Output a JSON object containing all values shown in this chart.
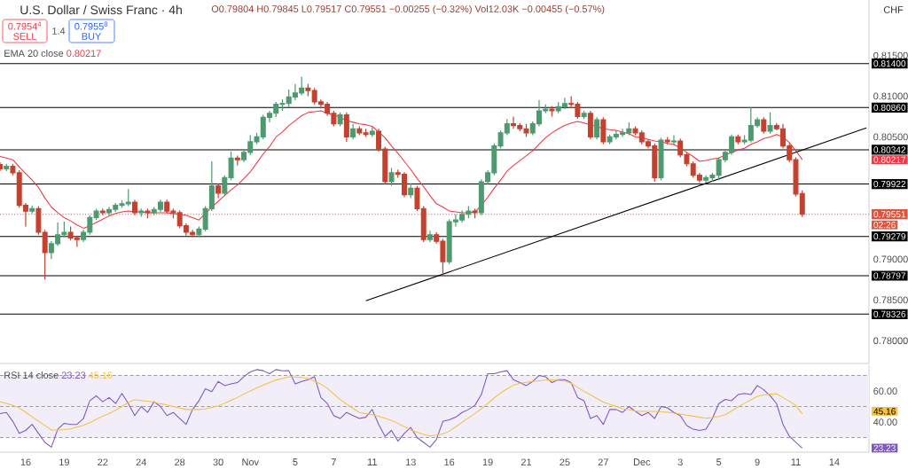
{
  "chart_data": [
    {
      "type": "candlestick",
      "title": "U.S. Dollar / Swiss Franc · 4h",
      "categories": [
        null,
        null,
        null,
        null,
        null,
        null,
        null,
        null,
        null,
        null,
        null,
        null,
        null,
        null,
        null,
        null,
        null,
        null,
        null,
        null,
        null,
        null,
        null,
        null,
        null,
        null,
        null,
        null,
        null,
        null,
        null,
        null,
        null,
        null,
        null,
        null,
        null,
        null,
        null,
        null,
        null,
        null,
        null,
        null,
        null,
        null,
        null,
        null,
        null,
        null,
        null,
        null,
        null,
        null,
        null,
        null,
        null,
        null,
        null,
        null,
        null,
        null,
        null,
        null,
        null,
        null,
        null,
        null,
        null,
        null,
        null,
        null,
        null,
        null,
        null,
        null,
        null,
        null,
        null,
        null,
        null,
        null,
        null,
        null,
        null,
        null,
        null,
        null,
        null,
        null,
        null,
        null,
        null,
        null,
        null,
        null,
        null,
        null,
        null,
        null,
        null,
        null,
        null,
        null,
        null,
        null,
        null,
        null,
        null,
        null,
        null,
        null,
        null,
        null,
        null,
        null,
        null,
        null,
        null,
        null,
        null,
        null,
        null,
        null,
        null,
        null,
        null,
        null,
        null,
        null,
        null,
        null,
        null,
        null,
        null,
        null
      ],
      "ohlc": [
        [
          0.8016,
          0.8019,
          0.8008,
          0.8011
        ],
        [
          0.8011,
          0.8017,
          0.8008,
          0.8014
        ],
        [
          0.8014,
          0.8017,
          0.8003,
          0.8006
        ],
        [
          0.8006,
          0.8009,
          0.7963,
          0.7966
        ],
        [
          0.7966,
          0.7969,
          0.794,
          0.7959
        ],
        [
          0.7959,
          0.7966,
          0.7956,
          0.7962
        ],
        [
          0.7962,
          0.7965,
          0.793,
          0.7933
        ],
        [
          0.7933,
          0.7936,
          0.7875,
          0.7908
        ],
        [
          0.7908,
          0.7922,
          0.79,
          0.7919
        ],
        [
          0.7919,
          0.7945,
          0.7916,
          0.793
        ],
        [
          0.793,
          0.7946,
          0.7927,
          0.7933
        ],
        [
          0.7933,
          0.794,
          0.7923,
          0.7926
        ],
        [
          0.7926,
          0.7929,
          0.7915,
          0.7924
        ],
        [
          0.7924,
          0.7936,
          0.7921,
          0.7933
        ],
        [
          0.7933,
          0.7954,
          0.793,
          0.7951
        ],
        [
          0.7951,
          0.7962,
          0.7948,
          0.7959
        ],
        [
          0.7959,
          0.7962,
          0.7954,
          0.7957
        ],
        [
          0.7957,
          0.7964,
          0.7954,
          0.7961
        ],
        [
          0.7961,
          0.7969,
          0.7958,
          0.7966
        ],
        [
          0.7966,
          0.7972,
          0.7963,
          0.7968
        ],
        [
          0.7968,
          0.7986,
          0.7965,
          0.797
        ],
        [
          0.797,
          0.7973,
          0.7954,
          0.7957
        ],
        [
          0.7957,
          0.7962,
          0.7952,
          0.7959
        ],
        [
          0.7959,
          0.7962,
          0.795,
          0.7957
        ],
        [
          0.7957,
          0.7964,
          0.7954,
          0.7961
        ],
        [
          0.7961,
          0.7973,
          0.7958,
          0.797
        ],
        [
          0.797,
          0.7973,
          0.7956,
          0.7959
        ],
        [
          0.7959,
          0.7962,
          0.795,
          0.7957
        ],
        [
          0.7957,
          0.796,
          0.7938,
          0.7941
        ],
        [
          0.7941,
          0.7944,
          0.7929,
          0.7933
        ],
        [
          0.7933,
          0.7936,
          0.7927,
          0.793
        ],
        [
          0.793,
          0.794,
          0.7927,
          0.7937
        ],
        [
          0.7937,
          0.7965,
          0.7934,
          0.7962
        ],
        [
          0.7962,
          0.802,
          0.7959,
          0.799
        ],
        [
          0.799,
          0.7993,
          0.7975,
          0.7981
        ],
        [
          0.7981,
          0.8003,
          0.7978,
          0.8
        ],
        [
          0.8,
          0.8032,
          0.7997,
          0.8024
        ],
        [
          0.8024,
          0.8027,
          0.8015,
          0.8022
        ],
        [
          0.8022,
          0.8034,
          0.8019,
          0.8031
        ],
        [
          0.8031,
          0.8052,
          0.8028,
          0.8044
        ],
        [
          0.8044,
          0.8055,
          0.8041,
          0.805
        ],
        [
          0.805,
          0.8077,
          0.8047,
          0.8074
        ],
        [
          0.8074,
          0.8082,
          0.8068,
          0.8079
        ],
        [
          0.8079,
          0.8093,
          0.8074,
          0.809
        ],
        [
          0.809,
          0.8096,
          0.8082,
          0.8091
        ],
        [
          0.8091,
          0.8108,
          0.8086,
          0.8099
        ],
        [
          0.8099,
          0.8115,
          0.8095,
          0.8104
        ],
        [
          0.8104,
          0.8124,
          0.8101,
          0.811
        ],
        [
          0.811,
          0.8115,
          0.81,
          0.8107
        ],
        [
          0.8107,
          0.811,
          0.809,
          0.8093
        ],
        [
          0.8093,
          0.8096,
          0.8085,
          0.809
        ],
        [
          0.809,
          0.8093,
          0.8076,
          0.8079
        ],
        [
          0.8079,
          0.8082,
          0.8063,
          0.8066
        ],
        [
          0.8066,
          0.808,
          0.8063,
          0.8077
        ],
        [
          0.8077,
          0.808,
          0.8044,
          0.805
        ],
        [
          0.805,
          0.8066,
          0.8047,
          0.806
        ],
        [
          0.806,
          0.8063,
          0.8052,
          0.8055
        ],
        [
          0.8055,
          0.806,
          0.805,
          0.8053
        ],
        [
          0.8053,
          0.8062,
          0.805,
          0.8057
        ],
        [
          0.8057,
          0.806,
          0.8032,
          0.8035
        ],
        [
          0.8035,
          0.8038,
          0.7992,
          0.7995
        ],
        [
          0.7995,
          0.8012,
          0.799,
          0.8006
        ],
        [
          0.8006,
          0.801,
          0.8,
          0.8004
        ],
        [
          0.8004,
          0.8007,
          0.7976,
          0.7979
        ],
        [
          0.7979,
          0.7993,
          0.7975,
          0.7987
        ],
        [
          0.7987,
          0.799,
          0.7959,
          0.7962
        ],
        [
          0.7962,
          0.7965,
          0.7921,
          0.7924
        ],
        [
          0.7924,
          0.7935,
          0.7921,
          0.793
        ],
        [
          0.793,
          0.7933,
          0.7919,
          0.7922
        ],
        [
          0.7922,
          0.7925,
          0.788,
          0.7897
        ],
        [
          0.7897,
          0.7949,
          0.7894,
          0.7946
        ],
        [
          0.7946,
          0.7955,
          0.794,
          0.7948
        ],
        [
          0.7948,
          0.796,
          0.7945,
          0.7955
        ],
        [
          0.7955,
          0.7965,
          0.795,
          0.7959
        ],
        [
          0.7959,
          0.7962,
          0.795,
          0.7957
        ],
        [
          0.7957,
          0.7998,
          0.7954,
          0.7995
        ],
        [
          0.7995,
          0.8009,
          0.7992,
          0.8006
        ],
        [
          0.8006,
          0.8042,
          0.8003,
          0.8039
        ],
        [
          0.8039,
          0.8058,
          0.8036,
          0.8055
        ],
        [
          0.8055,
          0.8072,
          0.8052,
          0.8066
        ],
        [
          0.8066,
          0.8075,
          0.806,
          0.8064
        ],
        [
          0.8064,
          0.8067,
          0.8057,
          0.806
        ],
        [
          0.806,
          0.8066,
          0.805,
          0.8055
        ],
        [
          0.8055,
          0.8069,
          0.8052,
          0.8066
        ],
        [
          0.8066,
          0.8095,
          0.8063,
          0.8082
        ],
        [
          0.8082,
          0.809,
          0.8079,
          0.8084
        ],
        [
          0.8084,
          0.8088,
          0.8075,
          0.8082
        ],
        [
          0.8082,
          0.8093,
          0.8079,
          0.8087
        ],
        [
          0.8087,
          0.8098,
          0.8084,
          0.8091
        ],
        [
          0.8091,
          0.81,
          0.8085,
          0.809
        ],
        [
          0.809,
          0.8093,
          0.8072,
          0.8075
        ],
        [
          0.8075,
          0.8082,
          0.8072,
          0.8079
        ],
        [
          0.8079,
          0.8082,
          0.8047,
          0.805
        ],
        [
          0.805,
          0.8074,
          0.8047,
          0.8071
        ],
        [
          0.8071,
          0.8074,
          0.8041,
          0.8044
        ],
        [
          0.8044,
          0.8053,
          0.8041,
          0.805
        ],
        [
          0.805,
          0.8058,
          0.8047,
          0.8053
        ],
        [
          0.8053,
          0.806,
          0.805,
          0.8055
        ],
        [
          0.8055,
          0.8068,
          0.8052,
          0.806
        ],
        [
          0.806,
          0.8063,
          0.8052,
          0.8055
        ],
        [
          0.8055,
          0.8058,
          0.8041,
          0.8044
        ],
        [
          0.8044,
          0.8047,
          0.8036,
          0.8039
        ],
        [
          0.8039,
          0.8042,
          0.7995,
          0.8
        ],
        [
          0.8,
          0.8049,
          0.7997,
          0.8046
        ],
        [
          0.8046,
          0.805,
          0.8041,
          0.8044
        ],
        [
          0.8044,
          0.8052,
          0.804,
          0.8045
        ],
        [
          0.8045,
          0.8048,
          0.8025,
          0.8028
        ],
        [
          0.8028,
          0.8031,
          0.8014,
          0.8017
        ],
        [
          0.8017,
          0.802,
          0.8,
          0.8003
        ],
        [
          0.8003,
          0.8006,
          0.7994,
          0.7997
        ],
        [
          0.7997,
          0.8003,
          0.7994,
          0.8
        ],
        [
          0.8,
          0.8006,
          0.7995,
          0.8003
        ],
        [
          0.8003,
          0.8025,
          0.7997,
          0.8022
        ],
        [
          0.8022,
          0.8034,
          0.8019,
          0.8031
        ],
        [
          0.8031,
          0.8053,
          0.8028,
          0.805
        ],
        [
          0.805,
          0.8053,
          0.8041,
          0.8044
        ],
        [
          0.8044,
          0.8052,
          0.8041,
          0.8046
        ],
        [
          0.8046,
          0.8086,
          0.8043,
          0.8064
        ],
        [
          0.8064,
          0.8074,
          0.8061,
          0.8071
        ],
        [
          0.8071,
          0.8074,
          0.8054,
          0.8057
        ],
        [
          0.8057,
          0.808,
          0.8054,
          0.8064
        ],
        [
          0.8064,
          0.8067,
          0.8058,
          0.806
        ],
        [
          0.806,
          0.8066,
          0.8036,
          0.8039
        ],
        [
          0.8039,
          0.8042,
          0.8019,
          0.8022
        ],
        [
          0.8022,
          0.8025,
          0.7977,
          0.798
        ],
        [
          0.79804,
          0.79845,
          0.79517,
          0.79551
        ],
        null,
        null,
        null,
        null,
        null,
        null,
        null,
        null,
        null,
        null
      ],
      "colors": [
        "#c4412f",
        "#4e9a70",
        "#c4412f",
        "#c4412f",
        "#c4412f",
        "#4e9a70",
        "#c4412f",
        "#c4412f",
        "#4e9a70",
        "#4e9a70",
        "#4e9a70",
        "#c4412f",
        "#c4412f",
        "#4e9a70",
        "#4e9a70",
        "#4e9a70",
        "#c4412f",
        "#4e9a70",
        "#4e9a70",
        "#4e9a70",
        "#4e9a70",
        "#c4412f",
        "#4e9a70",
        "#c4412f",
        "#4e9a70",
        "#4e9a70",
        "#c4412f",
        "#c4412f",
        "#c4412f",
        "#c4412f",
        "#c4412f",
        "#4e9a70",
        "#4e9a70",
        "#4e9a70",
        "#c4412f",
        "#4e9a70",
        "#4e9a70",
        "#c4412f",
        "#4e9a70",
        "#4e9a70",
        "#4e9a70",
        "#4e9a70",
        "#4e9a70",
        "#4e9a70",
        "#4e9a70",
        "#4e9a70",
        "#4e9a70",
        "#4e9a70",
        "#c4412f",
        "#c4412f",
        "#c4412f",
        "#c4412f",
        "#c4412f",
        "#4e9a70",
        "#c4412f",
        "#4e9a70",
        "#c4412f",
        "#c4412f",
        "#4e9a70",
        "#c4412f",
        "#c4412f",
        "#4e9a70",
        "#c4412f",
        "#c4412f",
        "#4e9a70",
        "#c4412f",
        "#c4412f",
        "#4e9a70",
        "#c4412f",
        "#c4412f",
        "#4e9a70",
        "#4e9a70",
        "#4e9a70",
        "#4e9a70",
        "#c4412f",
        "#4e9a70",
        "#4e9a70",
        "#4e9a70",
        "#4e9a70",
        "#4e9a70",
        "#c4412f",
        "#c4412f",
        "#c4412f",
        "#4e9a70",
        "#4e9a70",
        "#4e9a70",
        "#c4412f",
        "#4e9a70",
        "#4e9a70",
        "#c4412f",
        "#c4412f",
        "#4e9a70",
        "#c4412f",
        "#4e9a70",
        "#c4412f",
        "#4e9a70",
        "#4e9a70",
        "#4e9a70",
        "#4e9a70",
        "#c4412f",
        "#c4412f",
        "#c4412f",
        "#c4412f",
        "#4e9a70",
        "#c4412f",
        "#4e9a70",
        "#c4412f",
        "#c4412f",
        "#c4412f",
        "#c4412f",
        "#4e9a70",
        "#4e9a70",
        "#4e9a70",
        "#4e9a70",
        "#4e9a70",
        "#c4412f",
        "#4e9a70",
        "#4e9a70",
        "#4e9a70",
        "#c4412f",
        "#4e9a70",
        "#c4412f",
        "#c4412f",
        "#c4412f",
        "#c4412f",
        "#c4412f",
        null,
        null,
        null,
        null,
        null,
        null,
        null,
        null,
        null,
        null
      ],
      "series": [
        {
          "type": "line",
          "name": "EMA 20 close",
          "color": "#f23645",
          "values": [
            0.8026,
            0.8024,
            0.8022,
            0.8013,
            0.8005,
            0.7997,
            0.7988,
            0.7975,
            0.7964,
            0.7957,
            0.7951,
            0.7947,
            0.7942,
            0.7938,
            0.7941,
            0.7945,
            0.7949,
            0.7953,
            0.7956,
            0.7958,
            0.7959,
            0.7958,
            0.7958,
            0.7957,
            0.7957,
            0.7957,
            0.7957,
            0.7956,
            0.7955,
            0.7954,
            0.7951,
            0.7948,
            0.7956,
            0.7964,
            0.7971,
            0.7978,
            0.7985,
            0.7991,
            0.7999,
            0.8007,
            0.8018,
            0.8029,
            0.8038,
            0.805,
            0.8056,
            0.8064,
            0.807,
            0.8076,
            0.808,
            0.8081,
            0.8082,
            0.8079,
            0.8077,
            0.8074,
            0.807,
            0.8068,
            0.8066,
            0.8065,
            0.8063,
            0.8056,
            0.8049,
            0.8039,
            0.803,
            0.802,
            0.801,
            0.7999,
            0.7989,
            0.7978,
            0.7968,
            0.7964,
            0.7959,
            0.7958,
            0.7957,
            0.7957,
            0.7958,
            0.7966,
            0.7976,
            0.7987,
            0.7997,
            0.8008,
            0.8015,
            0.8021,
            0.8027,
            0.8033,
            0.8041,
            0.8049,
            0.8055,
            0.806,
            0.8064,
            0.8067,
            0.8069,
            0.8067,
            0.8065,
            0.8063,
            0.806,
            0.8059,
            0.8058,
            0.8056,
            0.8054,
            0.805,
            0.8049,
            0.8047,
            0.8045,
            0.8044,
            0.8042,
            0.8041,
            0.8036,
            0.8031,
            0.8026,
            0.802,
            0.8021,
            0.8023,
            0.8024,
            0.8028,
            0.8031,
            0.8034,
            0.8036,
            0.8041,
            0.8044,
            0.8048,
            0.805,
            0.8053,
            0.805,
            0.8043,
            0.8033,
            0.8022,
            null,
            null,
            null,
            null,
            null,
            null,
            null,
            null,
            null,
            null
          ]
        },
        {
          "type": "line",
          "color": "#000000",
          "values": [
            null,
            null,
            null,
            null,
            null,
            null,
            null,
            null,
            null,
            null,
            null,
            null,
            null,
            null,
            null,
            null,
            null,
            null,
            null,
            null,
            null,
            null,
            null,
            null,
            null,
            null,
            null,
            null,
            null,
            null,
            null,
            null,
            null,
            null,
            null,
            null,
            null,
            null,
            null,
            null,
            null,
            null,
            null,
            null,
            null,
            null,
            null,
            null,
            null,
            null,
            null,
            null,
            null,
            null,
            null,
            null,
            null,
            0.7849,
            null,
            null,
            null,
            null,
            null,
            null,
            null,
            null,
            null,
            null,
            null,
            null,
            null,
            null,
            null,
            null,
            null,
            null,
            null,
            null,
            null,
            null,
            null,
            null,
            null,
            null,
            null,
            null,
            null,
            null,
            null,
            null,
            null,
            null,
            null,
            null,
            null,
            null,
            null,
            null,
            null,
            null,
            null,
            null,
            null,
            null,
            null,
            null,
            null,
            null,
            null,
            null,
            null,
            null,
            null,
            null,
            null,
            null,
            null,
            null,
            null,
            null,
            null,
            null,
            null,
            null,
            null,
            null,
            null,
            null,
            null,
            null,
            null,
            null,
            null,
            null,
            null,
            0.8061
          ]
        }
      ],
      "ylim": [
        0.7772,
        0.8218
      ],
      "yticks": [
        {
          "value": 0.78,
          "label": "0.78000"
        },
        {
          "value": 0.785,
          "label": "0.78500"
        },
        {
          "value": 0.79,
          "label": "0.79000"
        },
        {
          "value": 0.805,
          "label": "0.80500"
        },
        {
          "value": 0.81,
          "label": "0.81000"
        },
        {
          "value": 0.815,
          "label": "0.81500"
        }
      ],
      "ref_lines": [
        {
          "axis": "y",
          "value": 0.814,
          "label": "0.81400",
          "color": "#000000",
          "line_style": "solid"
        },
        {
          "axis": "y",
          "value": 0.8086,
          "label": "0.80860",
          "color": "#000000",
          "line_style": "solid"
        },
        {
          "axis": "y",
          "value": 0.80342,
          "label": "0.80342",
          "color": "#000000",
          "line_style": "solid"
        },
        {
          "axis": "y",
          "value": 0.79922,
          "label": "0.79922",
          "color": "#000000",
          "line_style": "solid"
        },
        {
          "axis": "y",
          "value": 0.79279,
          "label": "0.79279",
          "color": "#000000",
          "line_style": "solid"
        },
        {
          "axis": "y",
          "value": 0.78797,
          "label": "0.78797",
          "color": "#000000",
          "line_style": "solid"
        },
        {
          "axis": "y",
          "value": 0.78326,
          "label": "0.78326",
          "color": "#000000",
          "line_style": "solid"
        },
        {
          "axis": "y",
          "value": 0.79551,
          "label": "0.79551",
          "color": "#e0533f",
          "line_style": "dotted"
        }
      ],
      "annotations": [
        "O0.79804 H0.79845 L0.79517 C0.79551 −0.00255 (−0.32%) Vol12.03K −0.00455 (−0.57%)",
        "0.7954$^{4}$",
        "SELL",
        "1.4",
        "0.7955$^{8}$",
        "BUY",
        "CHF",
        "0.80217",
        "0.80217",
        "02:26"
      ],
      "legend": "top left",
      "tick_labels": "y"
    },
    {
      "type": "line",
      "categories": [
        null,
        null,
        null,
        null,
        "16",
        null,
        null,
        null,
        null,
        null,
        "19",
        null,
        null,
        null,
        null,
        null,
        "22",
        null,
        null,
        null,
        null,
        null,
        "24",
        null,
        null,
        null,
        null,
        null,
        "28",
        null,
        null,
        null,
        null,
        null,
        "30",
        null,
        null,
        null,
        null,
        "Nov",
        null,
        null,
        null,
        null,
        null,
        null,
        "5",
        null,
        null,
        null,
        null,
        null,
        "7",
        null,
        null,
        null,
        null,
        null,
        "11",
        null,
        null,
        null,
        null,
        null,
        "13",
        null,
        null,
        null,
        null,
        null,
        "16",
        null,
        null,
        null,
        null,
        null,
        "19",
        null,
        null,
        null,
        null,
        null,
        "21",
        null,
        null,
        null,
        null,
        null,
        "25",
        null,
        null,
        null,
        null,
        null,
        "27",
        null,
        null,
        null,
        null,
        null,
        "Dec",
        null,
        null,
        null,
        null,
        null,
        "3",
        null,
        null,
        null,
        null,
        null,
        "5",
        null,
        null,
        null,
        null,
        null,
        "9",
        null,
        null,
        null,
        null,
        null,
        "11",
        null,
        null,
        null,
        null,
        null,
        "14",
        null,
        null,
        null,
        null,
        null
      ],
      "series": [
        {
          "name": "RSI 14 close",
          "color": "#7e57c2",
          "values": [
            45.4,
            46.2,
            40.4,
            32.7,
            34.6,
            38.5,
            32.7,
            26.9,
            23.8,
            35.4,
            39.2,
            38.5,
            38.5,
            42.3,
            53.8,
            56.9,
            53.1,
            55.8,
            51.9,
            58.5,
            51.9,
            44.2,
            50.0,
            46.2,
            53.1,
            50.0,
            44.2,
            46.2,
            42.3,
            38.5,
            48.1,
            53.8,
            61.5,
            59.6,
            66.2,
            63.5,
            64.6,
            65.4,
            69.2,
            72.3,
            73.8,
            73.1,
            71.2,
            73.8,
            73.0,
            73.1,
            64.6,
            66.2,
            67.3,
            69.2,
            55.8,
            51.9,
            44.2,
            42.3,
            46.2,
            44.2,
            42.3,
            43.1,
            48.1,
            38.5,
            30.8,
            34.6,
            27.7,
            32.7,
            36.5,
            30.0,
            26.9,
            23.8,
            28.8,
            40.4,
            41.5,
            43.1,
            46.2,
            48.1,
            50.8,
            57.7,
            71.2,
            71.2,
            72.3,
            73.1,
            67.3,
            65.4,
            63.5,
            66.2,
            70.0,
            69.2,
            65.4,
            67.3,
            67.3,
            65.4,
            55.8,
            53.8,
            42.3,
            44.2,
            38.5,
            48.1,
            48.1,
            46.2,
            50.0,
            46.9,
            44.2,
            46.2,
            42.3,
            50.0,
            49.2,
            46.2,
            44.2,
            37.7,
            35.4,
            34.6,
            35.4,
            42.3,
            51.9,
            54.6,
            53.8,
            57.7,
            58.5,
            57.7,
            63.5,
            60.8,
            57.0,
            51.9,
            38.5,
            30.8,
            26.9,
            23.2,
            null,
            null,
            null,
            null,
            null,
            null,
            null,
            null,
            null,
            null
          ]
        },
        {
          "color": "#f5c242",
          "values": [
            53.1,
            52.0,
            50.8,
            49.1,
            46.3,
            43.4,
            40.6,
            37.8,
            34.9,
            34.9,
            35.2,
            35.6,
            36.8,
            37.9,
            39.6,
            41.7,
            43.8,
            45.5,
            47.6,
            50.0,
            52.6,
            54.5,
            53.9,
            53.4,
            52.7,
            51.8,
            51.0,
            50.0,
            49.0,
            48.1,
            48.1,
            48.1,
            48.5,
            49.5,
            50.5,
            52.1,
            54.0,
            55.8,
            58.1,
            60.0,
            62.0,
            63.7,
            65.5,
            67.1,
            68.0,
            69.2,
            69.0,
            68.7,
            68.2,
            66.3,
            64.4,
            61.7,
            58.1,
            54.5,
            51.6,
            48.9,
            46.2,
            45.5,
            44.7,
            43.8,
            42.4,
            41.0,
            39.1,
            37.0,
            34.8,
            33.5,
            32.0,
            31.0,
            31.6,
            32.3,
            34.1,
            36.9,
            39.8,
            42.7,
            45.5,
            48.5,
            52.0,
            55.6,
            58.7,
            61.3,
            63.8,
            65.0,
            65.6,
            66.2,
            66.6,
            67.0,
            67.2,
            66.8,
            66.4,
            65.0,
            62.4,
            59.8,
            57.6,
            55.2,
            52.9,
            51.5,
            50.1,
            48.6,
            48.0,
            47.1,
            46.9,
            46.9,
            46.9,
            46.6,
            46.4,
            45.7,
            45.2,
            44.5,
            43.8,
            43.1,
            42.4,
            42.9,
            43.6,
            44.7,
            47.2,
            49.8,
            52.1,
            54.3,
            56.6,
            57.4,
            58.0,
            58.2,
            55.8,
            53.4,
            50.7,
            45.2,
            null,
            null,
            null,
            null,
            null,
            null,
            null,
            null,
            null,
            null
          ]
        }
      ],
      "ylim": [
        20.6,
        76.6
      ],
      "yticks": [
        {
          "value": 40,
          "label": "40.00"
        },
        {
          "value": 60,
          "label": "60.00"
        }
      ],
      "bands": [
        {
          "axis": "y",
          "from": 30,
          "to": 70,
          "color": "#f1edf9"
        }
      ],
      "ref_lines": [
        {
          "axis": "y",
          "value": 70,
          "color": "#9e9e9e",
          "line_style": "dashed"
        },
        {
          "axis": "y",
          "value": 50,
          "color": "#9e9e9e",
          "line_style": "dashed"
        },
        {
          "axis": "y",
          "value": 30,
          "color": "#9e9e9e",
          "line_style": "dashed"
        }
      ],
      "annotations": [
        "23.23",
        "45.16",
        "45.16",
        "23.23"
      ],
      "legend": "top left"
    }
  ]
}
